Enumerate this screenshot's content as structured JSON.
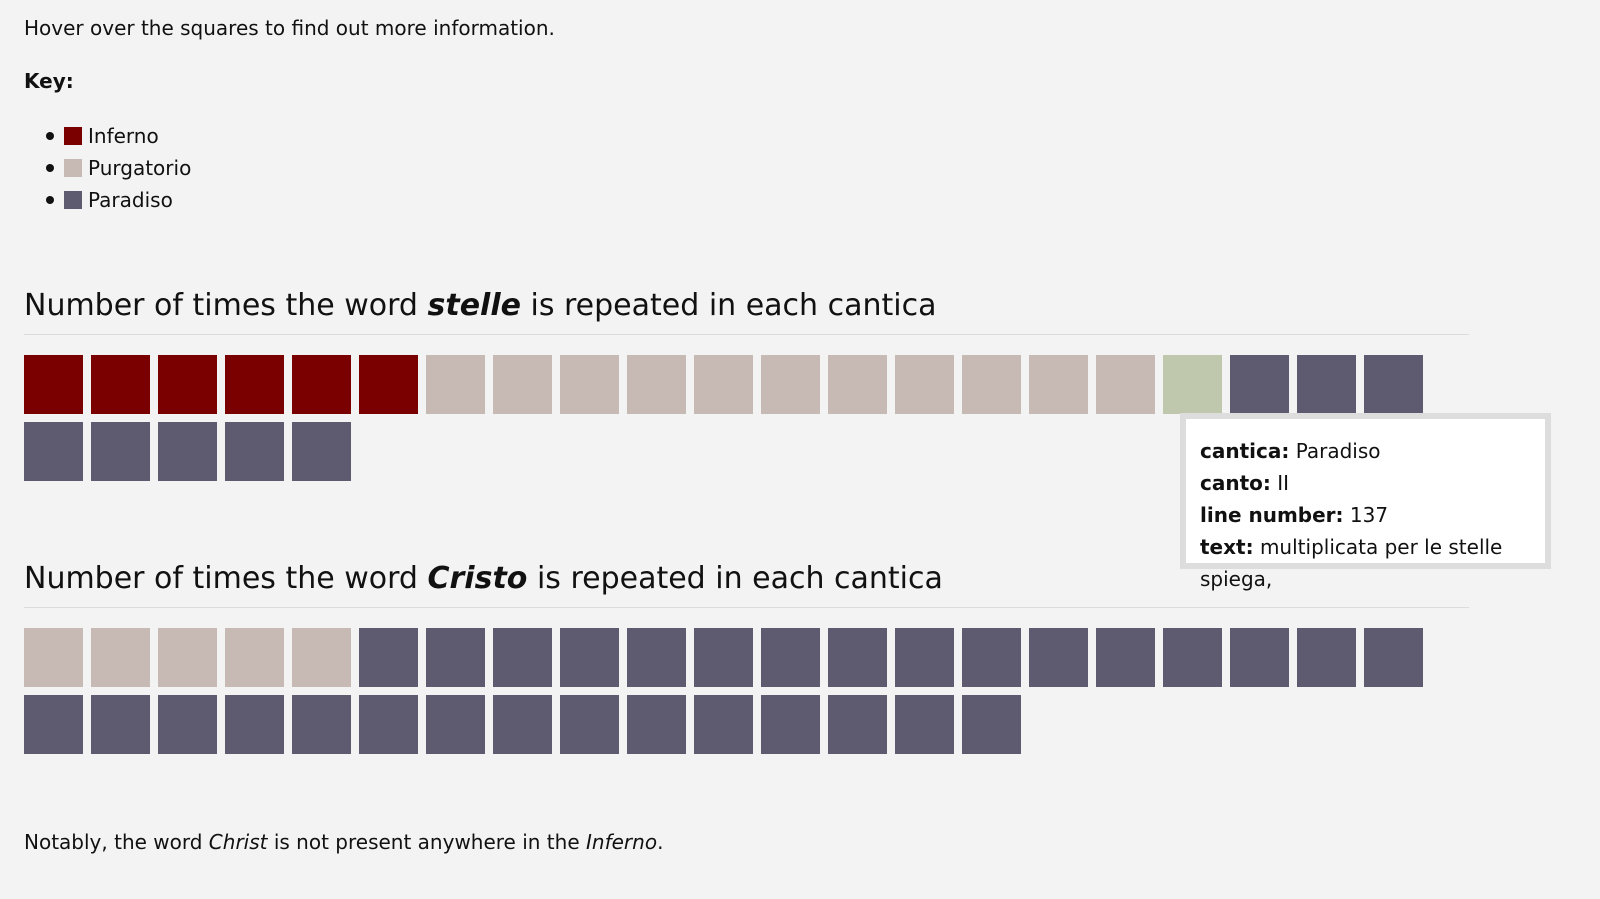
{
  "intro": "Hover over the squares to find out more information.",
  "key_title": "Key:",
  "colors": {
    "Inferno": "#7a0000",
    "Purgatorio": "#c7b9b3",
    "Paradiso": "#5e5a70",
    "hover": "#bfc8ad"
  },
  "key": [
    {
      "label": "Inferno",
      "color": "#7a0000"
    },
    {
      "label": "Purgatorio",
      "color": "#c7b9b3"
    },
    {
      "label": "Paradiso",
      "color": "#5e5a70"
    }
  ],
  "chart_data": [
    {
      "type": "waffle",
      "title_prefix": "Number of times the word ",
      "title_word": "stelle",
      "title_suffix": " is repeated in each cantica",
      "categories": [
        "Inferno",
        "Purgatorio",
        "Paradiso"
      ],
      "values": [
        6,
        12,
        8
      ],
      "hovered_index": 17
    },
    {
      "type": "waffle",
      "title_prefix": "Number of times the word ",
      "title_word": "Cristo",
      "title_suffix": " is repeated in each cantica",
      "categories": [
        "Inferno",
        "Purgatorio",
        "Paradiso"
      ],
      "values": [
        0,
        5,
        31
      ],
      "hovered_index": null
    }
  ],
  "tooltip": {
    "cantica_label": "cantica:",
    "cantica": "Paradiso",
    "canto_label": "canto:",
    "canto": "II",
    "line_label": "line number:",
    "line": "137",
    "text_label": "text:",
    "text": "multiplicata per le stelle spiega,"
  },
  "note": {
    "p1": "Notably, the word ",
    "w1": "Christ",
    "p2": " is not present anywhere in the ",
    "w2": "Inferno",
    "p3": "."
  }
}
